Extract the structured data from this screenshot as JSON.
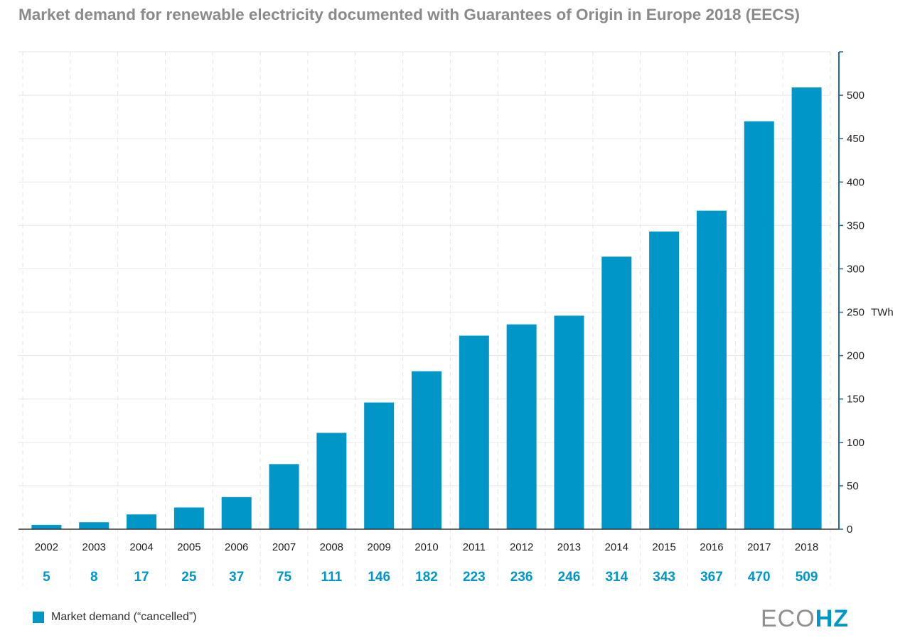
{
  "chart_data": {
    "type": "bar",
    "title": "Market demand for renewable electricity documented with Guarantees of Origin in Europe 2018 (EECS)",
    "categories": [
      "2002",
      "2003",
      "2004",
      "2005",
      "2006",
      "2007",
      "2008",
      "2009",
      "2010",
      "2011",
      "2012",
      "2013",
      "2014",
      "2015",
      "2016",
      "2017",
      "2018"
    ],
    "series": [
      {
        "name": "Market demand (“cancelled”)",
        "values": [
          5,
          8,
          17,
          25,
          37,
          75,
          111,
          146,
          182,
          223,
          236,
          246,
          314,
          343,
          367,
          470,
          509
        ]
      }
    ],
    "data_labels": [
      "5",
      "8",
      "17",
      "25",
      "37",
      "75",
      "111",
      "146",
      "182",
      "223",
      "236",
      "246",
      "314",
      "343",
      "367",
      "470",
      "509"
    ],
    "ylim": [
      0,
      550
    ],
    "yticks": [
      "0",
      "50",
      "100",
      "150",
      "200",
      "250",
      "300",
      "350",
      "400",
      "450",
      "500"
    ],
    "y_unit_label": "TWh",
    "y_axis_position": "right",
    "grid": true,
    "legend_position": "bottom-left"
  },
  "colors": {
    "bar": "#0096c8",
    "label": "#0096c8",
    "axis": "#1f6aa6",
    "title": "#8a8a8a"
  },
  "logo": {
    "eco": "ECO",
    "hz": "HZ"
  }
}
